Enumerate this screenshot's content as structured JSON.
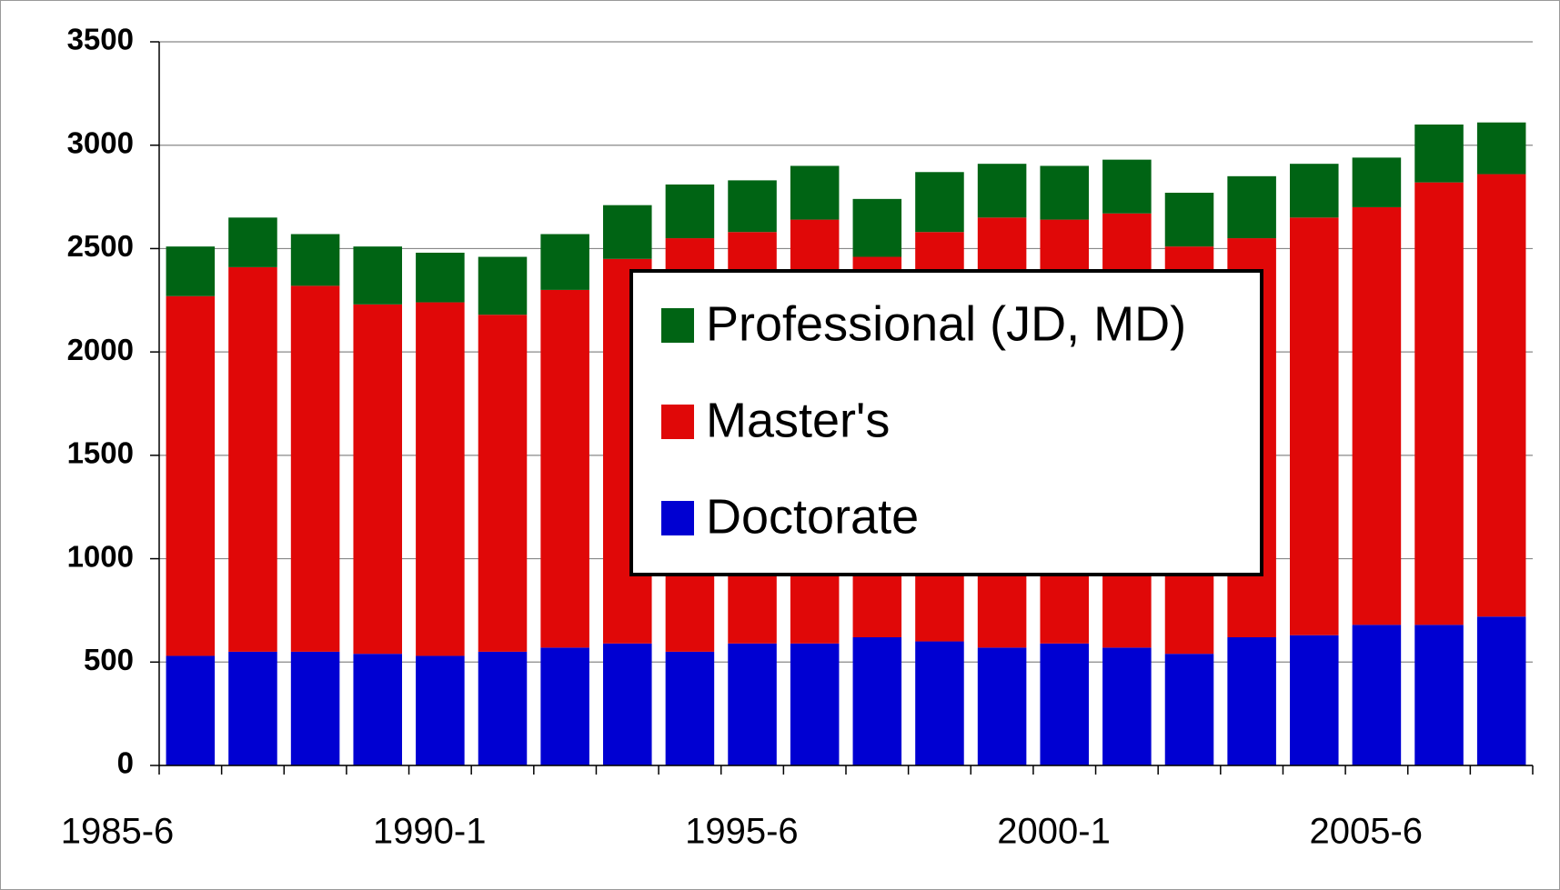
{
  "chart_data": {
    "type": "stacked_bar",
    "categories": [
      "1985-6",
      null,
      null,
      null,
      null,
      "1990-1",
      null,
      null,
      null,
      null,
      "1995-6",
      null,
      null,
      null,
      null,
      "2000-1",
      null,
      null,
      null,
      null,
      "2005-6",
      null
    ],
    "series": [
      {
        "name": "Doctorate",
        "color": "#0000d2",
        "values": [
          530,
          550,
          550,
          540,
          530,
          550,
          570,
          590,
          550,
          590,
          590,
          620,
          600,
          570,
          590,
          570,
          540,
          620,
          630,
          680,
          680,
          720
        ]
      },
      {
        "name": "Master's",
        "color": "#e00808",
        "values": [
          1740,
          1860,
          1770,
          1690,
          1710,
          1630,
          1730,
          1860,
          2000,
          1990,
          2050,
          1840,
          1980,
          2080,
          2050,
          2100,
          1970,
          1930,
          2020,
          2020,
          2140,
          2140
        ]
      },
      {
        "name": "Professional (JD, MD)",
        "color": "#006414",
        "values": [
          240,
          240,
          250,
          280,
          240,
          280,
          270,
          260,
          260,
          250,
          260,
          280,
          290,
          260,
          260,
          260,
          260,
          300,
          260,
          240,
          280,
          250
        ]
      }
    ],
    "ylim": [
      0,
      3500
    ],
    "yticks": [
      0,
      500,
      1000,
      1500,
      2000,
      2500,
      3000,
      3500
    ],
    "grid": true,
    "legend": "center"
  }
}
